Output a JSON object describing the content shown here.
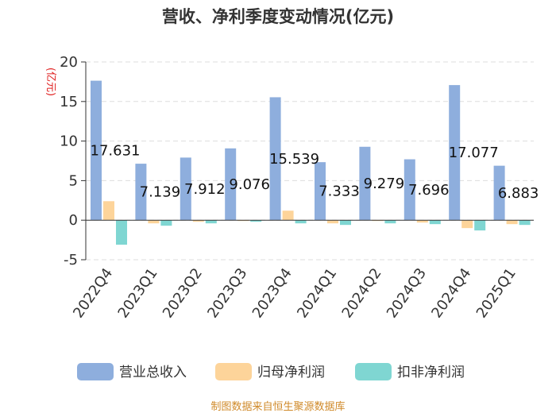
{
  "chart_data": {
    "type": "bar",
    "title": "营收、净利季度变动情况(亿元)",
    "unit_label": "(亿元)",
    "categories": [
      "2022Q4",
      "2023Q1",
      "2023Q2",
      "2023Q3",
      "2023Q4",
      "2024Q1",
      "2024Q2",
      "2024Q3",
      "2024Q4",
      "2025Q1"
    ],
    "series": [
      {
        "name": "营业总收入",
        "color": "#8eaedd",
        "values": [
          17.631,
          7.139,
          7.912,
          9.076,
          15.539,
          7.333,
          9.279,
          7.696,
          17.077,
          6.883
        ],
        "labels": [
          "17.631",
          "7.139",
          "7.912",
          "9.076",
          "15.539",
          "7.333",
          "9.279",
          "7.696",
          "17.077",
          "6.883"
        ]
      },
      {
        "name": "归母净利润",
        "color": "#fdd49a",
        "values": [
          2.4,
          -0.4,
          -0.2,
          -0.1,
          1.2,
          -0.4,
          -0.1,
          -0.3,
          -1.0,
          -0.5
        ]
      },
      {
        "name": "扣非净利润",
        "color": "#7fd6d2",
        "values": [
          -3.1,
          -0.7,
          -0.4,
          -0.2,
          -0.4,
          -0.6,
          -0.4,
          -0.5,
          -1.3,
          -0.6
        ]
      }
    ],
    "y_ticks": [
      "20",
      "15",
      "10",
      "5",
      "0",
      "-5"
    ],
    "ylim": [
      -5,
      20
    ],
    "grid": true,
    "legend_position": "bottom"
  },
  "footer": "制图数据来自恒生聚源数据库"
}
